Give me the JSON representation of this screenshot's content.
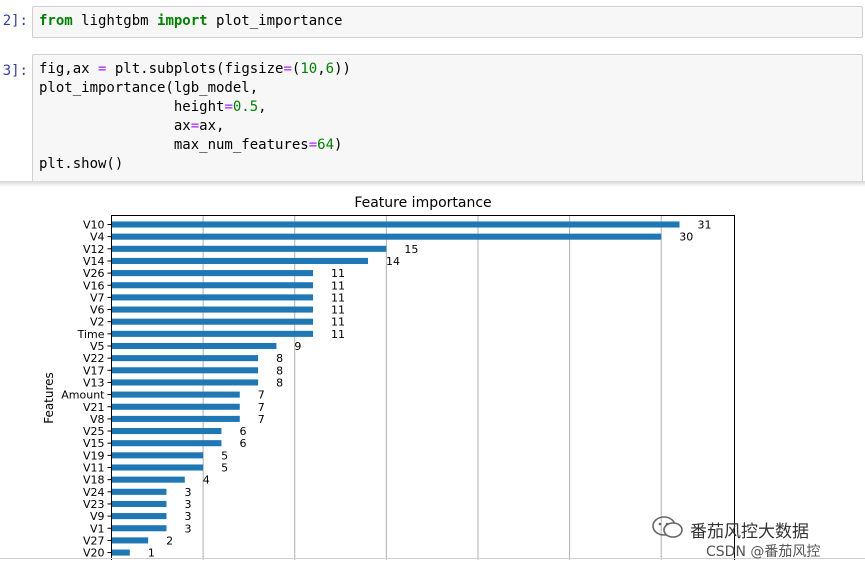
{
  "cells": [
    {
      "prompt": "2]:",
      "code": [
        [
          {
            "t": "kw",
            "v": "from"
          },
          {
            "t": "plain",
            "v": " lightgbm "
          },
          {
            "t": "kw",
            "v": "import"
          },
          {
            "t": "plain",
            "v": " plot_importance"
          }
        ]
      ]
    },
    {
      "prompt": "3]:",
      "code": [
        [
          {
            "t": "plain",
            "v": "fig,ax "
          },
          {
            "t": "op",
            "v": "="
          },
          {
            "t": "plain",
            "v": " plt.subplots(figsize"
          },
          {
            "t": "op",
            "v": "="
          },
          {
            "t": "plain",
            "v": "("
          },
          {
            "t": "num",
            "v": "10"
          },
          {
            "t": "plain",
            "v": ","
          },
          {
            "t": "num",
            "v": "6"
          },
          {
            "t": "plain",
            "v": "))"
          }
        ],
        [
          {
            "t": "plain",
            "v": "plot_importance(lgb_model,"
          }
        ],
        [
          {
            "t": "plain",
            "v": "                height"
          },
          {
            "t": "op",
            "v": "="
          },
          {
            "t": "num",
            "v": "0.5"
          },
          {
            "t": "plain",
            "v": ","
          }
        ],
        [
          {
            "t": "plain",
            "v": "                ax"
          },
          {
            "t": "op",
            "v": "="
          },
          {
            "t": "plain",
            "v": "ax,"
          }
        ],
        [
          {
            "t": "plain",
            "v": "                max_num_features"
          },
          {
            "t": "op",
            "v": "="
          },
          {
            "t": "num",
            "v": "64"
          },
          {
            "t": "plain",
            "v": ")"
          }
        ],
        [
          {
            "t": "plain",
            "v": "plt.show()"
          }
        ]
      ]
    }
  ],
  "chart_data": {
    "type": "bar",
    "orientation": "horizontal",
    "title": "Feature importance",
    "ylabel": "Features",
    "xlabel": "",
    "xlim": [
      0,
      34
    ],
    "grid": true,
    "bar_color": "#1f77b4",
    "categories": [
      "V10",
      "V4",
      "V12",
      "V14",
      "V26",
      "V16",
      "V7",
      "V6",
      "V2",
      "Time",
      "V5",
      "V22",
      "V17",
      "V13",
      "Amount",
      "V21",
      "V8",
      "V25",
      "V15",
      "V19",
      "V11",
      "V18",
      "V24",
      "V23",
      "V9",
      "V1",
      "V27",
      "V20"
    ],
    "values": [
      31,
      30,
      15,
      14,
      11,
      11,
      11,
      11,
      11,
      11,
      9,
      8,
      8,
      8,
      7,
      7,
      7,
      6,
      6,
      5,
      5,
      4,
      3,
      3,
      3,
      3,
      2,
      1
    ]
  },
  "watermark": {
    "brand": "番茄风控大数据",
    "source": "CSDN @番茄风控"
  },
  "colors": {
    "prompt": "#303f9f",
    "keyword": "#008000",
    "operator": "#aa22ff"
  }
}
